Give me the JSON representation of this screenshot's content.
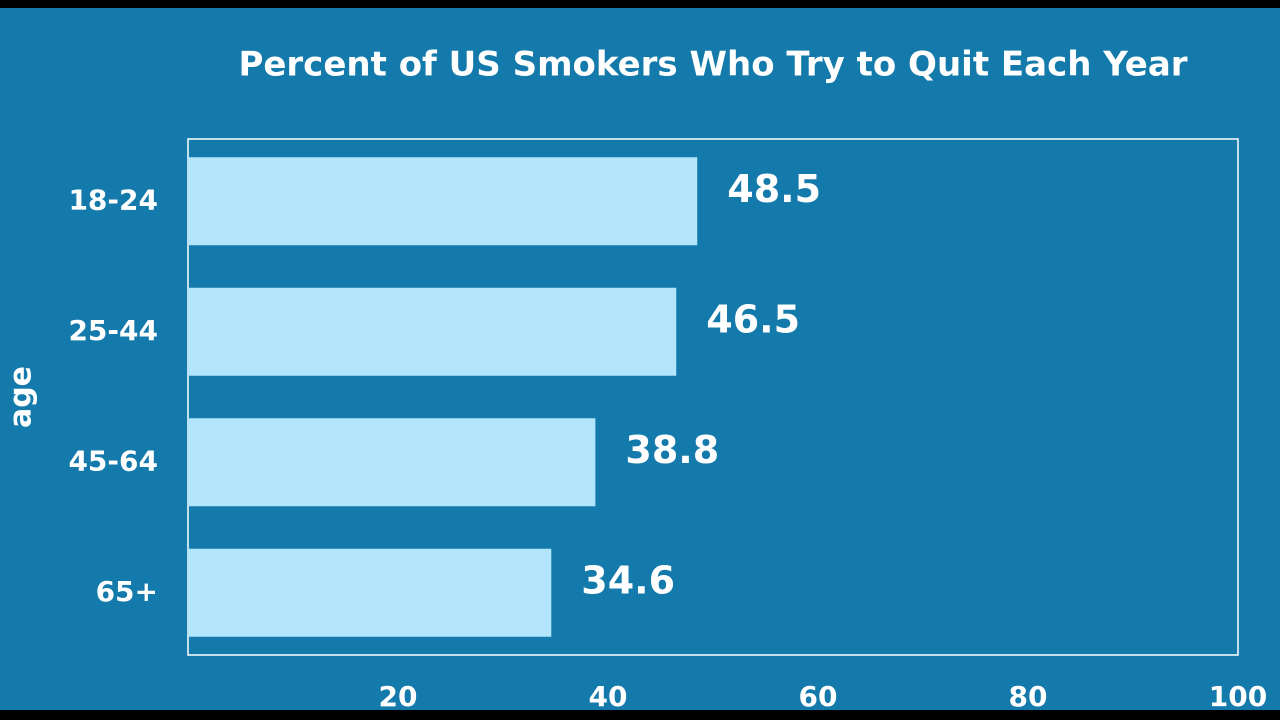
{
  "chart_data": {
    "type": "barh",
    "title": "Percent of US Smokers Who Try to Quit Each Year",
    "ylabel": "age",
    "categories": [
      "18-24",
      "25-44",
      "45-64",
      "65+"
    ],
    "values": [
      48.5,
      46.5,
      38.8,
      34.6
    ],
    "color": "#b3e5fc",
    "xlim": [
      0,
      100
    ],
    "xticks": [
      20,
      40,
      60,
      80,
      100
    ]
  }
}
